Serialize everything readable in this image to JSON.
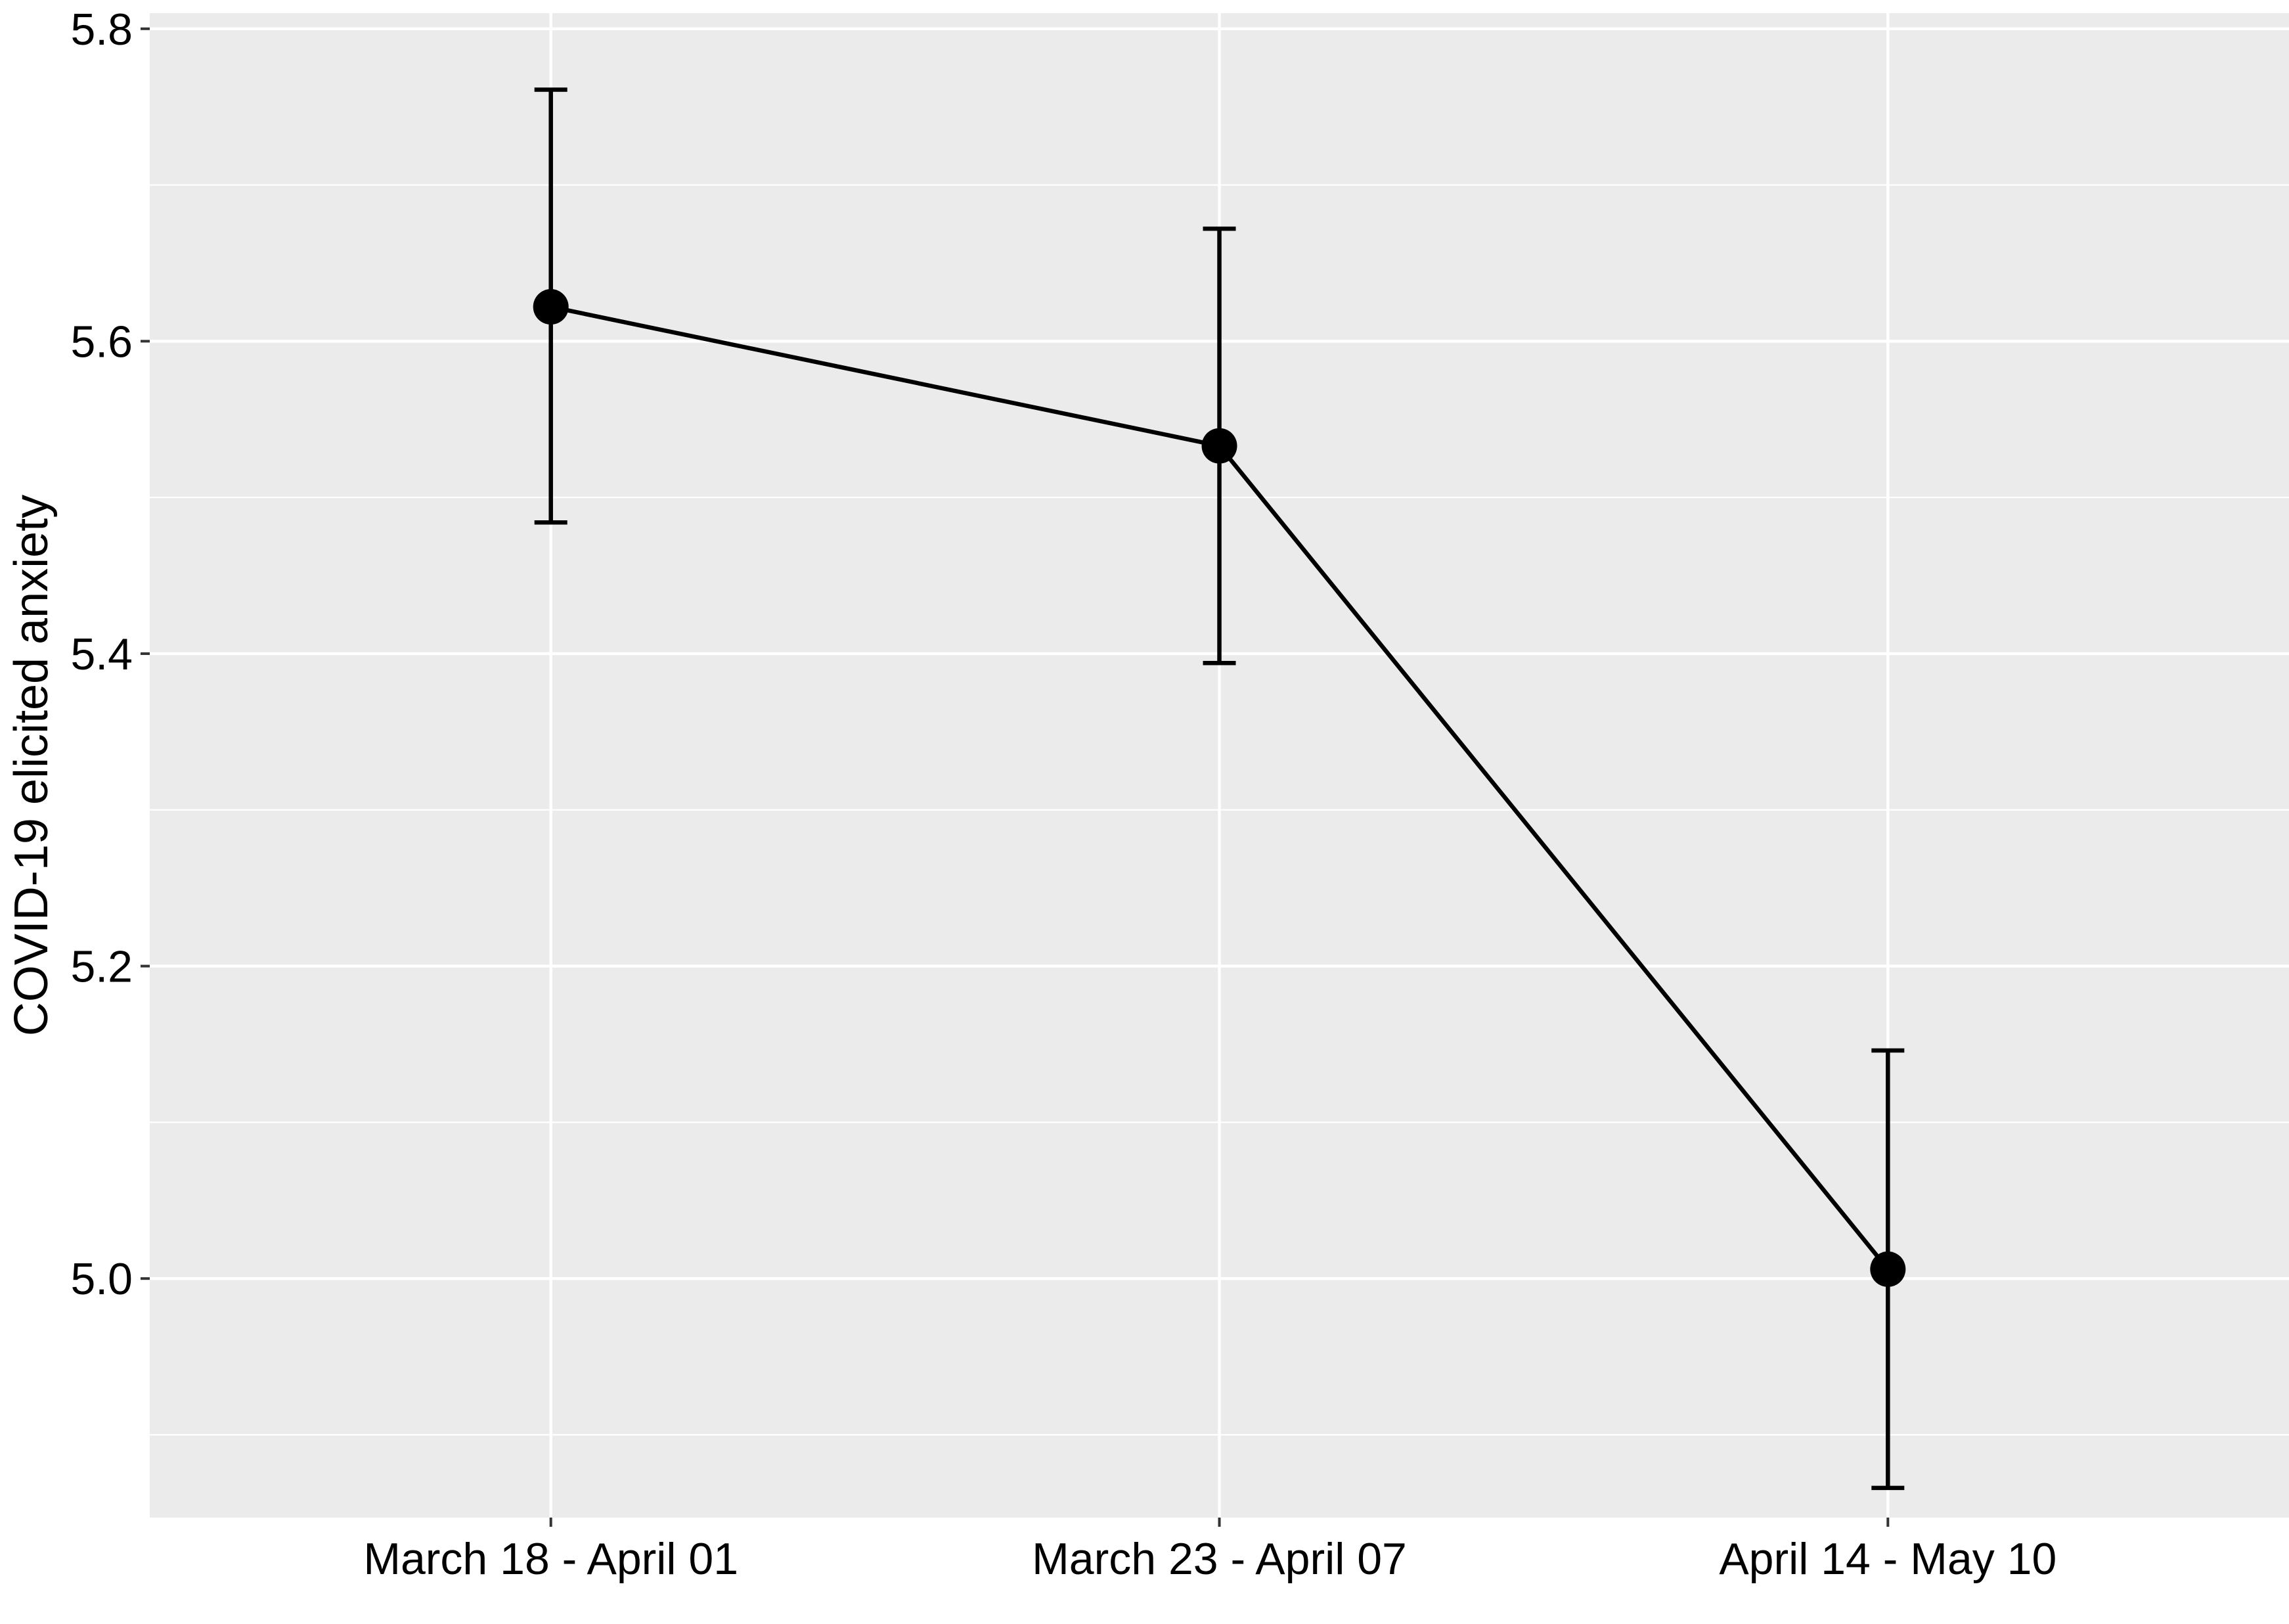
{
  "chart_data": {
    "type": "line",
    "title": "",
    "xlabel": "",
    "ylabel": "COVID-19 elicited anxiety",
    "categories": [
      "March 18 - April 01",
      "March 23 - April 07",
      "April 14 - May 10"
    ],
    "series": [
      {
        "values": [
          5.622,
          5.533,
          5.006
        ],
        "error_low": [
          5.484,
          5.394,
          4.866
        ],
        "error_high": [
          5.761,
          5.672,
          5.146
        ]
      }
    ],
    "ylim": [
      4.847,
      5.81
    ],
    "yticks": [
      5.0,
      5.2,
      5.4,
      5.6,
      5.8
    ],
    "ytick_labels": [
      "5.0",
      "5.2",
      "5.4",
      "5.6",
      "5.8"
    ],
    "grid": true,
    "legend": "none",
    "colors": {
      "panel": "#EBEBEB",
      "grid": "#FFFFFF",
      "series": "#000000"
    }
  }
}
